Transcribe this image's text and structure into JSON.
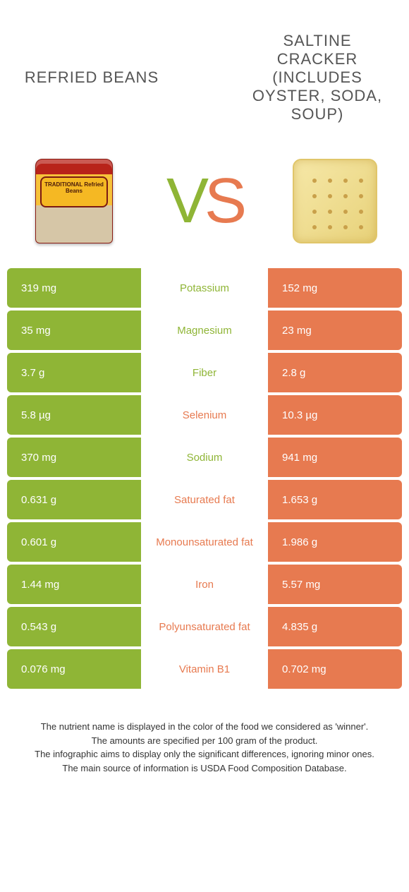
{
  "colors": {
    "left": "#8fb536",
    "right": "#e77a50",
    "mid_bg": "#ffffff",
    "text_dark": "#333333"
  },
  "header": {
    "left_title": "Refried beans",
    "right_title": "Saltine cracker (includes oyster, soda, soup)"
  },
  "vs": {
    "v": "V",
    "s": "S"
  },
  "rows": [
    {
      "left": "319 mg",
      "label": "Potassium",
      "right": "152 mg",
      "winner": "left"
    },
    {
      "left": "35 mg",
      "label": "Magnesium",
      "right": "23 mg",
      "winner": "left"
    },
    {
      "left": "3.7 g",
      "label": "Fiber",
      "right": "2.8 g",
      "winner": "left"
    },
    {
      "left": "5.8 µg",
      "label": "Selenium",
      "right": "10.3 µg",
      "winner": "right"
    },
    {
      "left": "370 mg",
      "label": "Sodium",
      "right": "941 mg",
      "winner": "left"
    },
    {
      "left": "0.631 g",
      "label": "Saturated fat",
      "right": "1.653 g",
      "winner": "right"
    },
    {
      "left": "0.601 g",
      "label": "Monounsaturated fat",
      "right": "1.986 g",
      "winner": "right"
    },
    {
      "left": "1.44 mg",
      "label": "Iron",
      "right": "5.57 mg",
      "winner": "right"
    },
    {
      "left": "0.543 g",
      "label": "Polyunsaturated fat",
      "right": "4.835 g",
      "winner": "right"
    },
    {
      "left": "0.076 mg",
      "label": "Vitamin B1",
      "right": "0.702 mg",
      "winner": "right"
    }
  ],
  "footer": {
    "line1": "The nutrient name is displayed in the color of the food we considered as 'winner'.",
    "line2": "The amounts are specified per 100 gram of the product.",
    "line3": "The infographic aims to display only the significant differences, ignoring minor ones.",
    "line4": "The main source of information is USDA Food Composition Database."
  },
  "can_label": "TRADITIONAL Refried Beans"
}
